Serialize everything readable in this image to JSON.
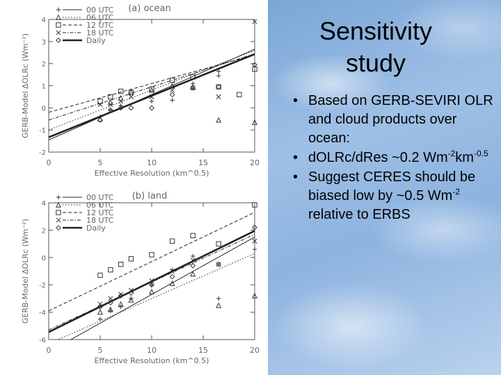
{
  "slide": {
    "title": "Sensitivity study",
    "bullets": [
      {
        "parts": [
          {
            "t": "Based on GERB-SEVIRI OLR and cloud products over ocean:"
          }
        ]
      },
      {
        "parts": [
          {
            "t": "dOLRc/dRes ~0.2 Wm"
          },
          {
            "t": "-2",
            "sup": true
          },
          {
            "t": "km"
          },
          {
            "t": "-0.5",
            "sup": true
          }
        ]
      },
      {
        "parts": [
          {
            "t": "Suggest CERES should be biased low by ~0.5 Wm"
          },
          {
            "t": "-2",
            "sup": true
          },
          {
            "t": " relative to ERBS"
          }
        ]
      }
    ]
  },
  "chart_data": [
    {
      "type": "scatter",
      "title": "(a) ocean",
      "xlabel": "Effective Resolution (km^0.5)",
      "ylabel": "GERB-Model ΔOLRc (Wm⁻²)",
      "xlim": [
        0,
        20
      ],
      "ylim": [
        -2,
        4
      ],
      "xticks": [
        0,
        5,
        10,
        15,
        20
      ],
      "yticks": [
        -2,
        -1,
        0,
        1,
        2,
        3,
        4
      ],
      "legend": "top-left",
      "legend_entries": [
        "00 UTC",
        "06 UTC",
        "12 UTC",
        "18 UTC",
        "Daily"
      ],
      "series": [
        {
          "name": "00 UTC",
          "marker": "plus",
          "dash": "solid",
          "line": [
            -1.45,
            0.205
          ],
          "points": [
            [
              5,
              -0.4
            ],
            [
              6,
              -0.1
            ],
            [
              7,
              0.1
            ],
            [
              10,
              0.3
            ],
            [
              12,
              0.35
            ],
            [
              14,
              1.1
            ],
            [
              16.5,
              1.45
            ],
            [
              16.5,
              1.65
            ]
          ]
        },
        {
          "name": "06 UTC",
          "marker": "triangle",
          "dash": "dot",
          "line": [
            -1.0,
            0.18
          ],
          "points": [
            [
              5,
              -0.5
            ],
            [
              6,
              0.25
            ],
            [
              7,
              0.45
            ],
            [
              8,
              0.7
            ],
            [
              10,
              0.8
            ],
            [
              12,
              1.0
            ],
            [
              14,
              0.95
            ],
            [
              16.5,
              -0.55
            ],
            [
              20,
              -0.65
            ]
          ]
        },
        {
          "name": "12 UTC",
          "marker": "square",
          "dash": "dash",
          "line": [
            -0.2,
            0.13
          ],
          "points": [
            [
              5,
              0.3
            ],
            [
              6,
              0.5
            ],
            [
              7,
              0.75
            ],
            [
              8,
              0.7
            ],
            [
              10,
              0.85
            ],
            [
              12,
              1.25
            ],
            [
              14,
              1.4
            ],
            [
              16.5,
              0.95
            ],
            [
              18.5,
              0.6
            ],
            [
              20,
              1.75
            ]
          ]
        },
        {
          "name": "18 UTC",
          "marker": "x",
          "dash": "dashdot",
          "line": [
            -0.55,
            0.15
          ],
          "points": [
            [
              5,
              0.15
            ],
            [
              6,
              0.15
            ],
            [
              7,
              0.3
            ],
            [
              8,
              0.5
            ],
            [
              10,
              0.5
            ],
            [
              12,
              0.8
            ],
            [
              14,
              0.9
            ],
            [
              16.5,
              0.5
            ],
            [
              20,
              4.35
            ]
          ]
        },
        {
          "name": "Daily",
          "marker": "diamond",
          "dash": "thick",
          "line": [
            -1.33,
            0.188
          ],
          "points": [
            [
              5,
              -0.55
            ],
            [
              6,
              -0.1
            ],
            [
              7,
              0.0
            ],
            [
              8,
              0.0
            ],
            [
              10,
              0.0
            ],
            [
              12,
              0.6
            ],
            [
              14,
              0.9
            ],
            [
              16.5,
              0.95
            ],
            [
              20,
              1.95
            ]
          ]
        }
      ]
    },
    {
      "type": "scatter",
      "title": "(b) land",
      "xlabel": "Effective Resolution (km^0.5)",
      "ylabel": "GERB-Model ΔOLRc (Wm⁻²)",
      "xlim": [
        0,
        20
      ],
      "ylim": [
        -6,
        4
      ],
      "xticks": [
        0,
        5,
        10,
        15,
        20
      ],
      "yticks": [
        -6,
        -4,
        -2,
        0,
        2,
        4
      ],
      "legend": "top-left",
      "legend_entries": [
        "00 UTC",
        "06 UTC",
        "12 UTC",
        "18 UTC",
        "Daily"
      ],
      "series": [
        {
          "name": "00 UTC",
          "marker": "plus",
          "dash": "solid",
          "line": [
            -6.9,
            0.42
          ],
          "points": [
            [
              5,
              -4.5
            ],
            [
              6,
              -3.9
            ],
            [
              7,
              -3.6
            ],
            [
              8,
              -3.0
            ],
            [
              10,
              -2.0
            ],
            [
              12,
              -0.9
            ],
            [
              14,
              0.1
            ],
            [
              16.5,
              -3.0
            ],
            [
              20,
              0.6
            ]
          ]
        },
        {
          "name": "06 UTC",
          "marker": "triangle",
          "dash": "dot",
          "line": [
            -6.3,
            0.33
          ],
          "points": [
            [
              5,
              -4.0
            ],
            [
              6,
              -3.8
            ],
            [
              7,
              -3.4
            ],
            [
              8,
              -3.1
            ],
            [
              10,
              -2.5
            ],
            [
              12,
              -1.9
            ],
            [
              14,
              -1.2
            ],
            [
              16.5,
              -3.5
            ],
            [
              20,
              -2.8
            ]
          ]
        },
        {
          "name": "12 UTC",
          "marker": "square",
          "dash": "dash",
          "line": [
            -3.9,
            0.36
          ],
          "points": [
            [
              5,
              -1.3
            ],
            [
              6,
              -0.9
            ],
            [
              7,
              -0.5
            ],
            [
              8,
              -0.1
            ],
            [
              10,
              0.2
            ],
            [
              12,
              1.2
            ],
            [
              14,
              1.6
            ],
            [
              16.5,
              1.0
            ],
            [
              20,
              4.0
            ]
          ]
        },
        {
          "name": "18 UTC",
          "marker": "x",
          "dash": "dashdot",
          "line": [
            -5.3,
            0.35
          ],
          "points": [
            [
              5,
              -3.4
            ],
            [
              6,
              -3.0
            ],
            [
              7,
              -2.7
            ],
            [
              8,
              -2.4
            ],
            [
              10,
              -1.7
            ],
            [
              12,
              -1.0
            ],
            [
              14,
              -0.2
            ],
            [
              16.5,
              -0.5
            ],
            [
              20,
              1.2
            ]
          ]
        },
        {
          "name": "Daily",
          "marker": "diamond",
          "dash": "thick",
          "line": [
            -5.45,
            0.37
          ],
          "points": [
            [
              5,
              -3.6
            ],
            [
              6,
              -3.3
            ],
            [
              7,
              -2.8
            ],
            [
              8,
              -2.6
            ],
            [
              10,
              -2.0
            ],
            [
              12,
              -1.4
            ],
            [
              14,
              -0.6
            ],
            [
              16.5,
              -0.5
            ],
            [
              20,
              2.2
            ]
          ]
        }
      ]
    }
  ]
}
